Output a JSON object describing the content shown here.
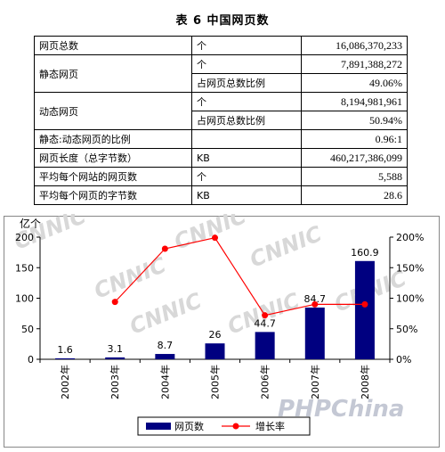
{
  "title": "表 6  中国网页数",
  "table": {
    "rows": [
      {
        "label": "网页总数",
        "unit": "个",
        "value": "16,086,370,233"
      },
      {
        "label": "静态网页",
        "subrows": [
          {
            "unit": "个",
            "value": "7,891,388,272"
          },
          {
            "unit": "占网页总数比例",
            "value": "49.06%"
          }
        ]
      },
      {
        "label": "动态网页",
        "subrows": [
          {
            "unit": "个",
            "value": "8,194,981,961"
          },
          {
            "unit": "占网页总数比例",
            "value": "50.94%"
          }
        ]
      },
      {
        "label": "静态:动态网页的比例",
        "unit": "",
        "value": "0.96:1"
      },
      {
        "label": "网页长度（总字节数）",
        "unit": "KB",
        "value": "460,217,386,099"
      },
      {
        "label": "平均每个网站的网页数",
        "unit": "个",
        "value": "5,588"
      },
      {
        "label": "平均每个网页的字节数",
        "unit": "KB",
        "value": "28.6"
      }
    ]
  },
  "watermarks": {
    "cnnic": "CNNIC",
    "phpchina": "PHPChina"
  },
  "chart_data": {
    "type": "bar",
    "categories": [
      "2002年",
      "2003年",
      "2004年",
      "2005年",
      "2006年",
      "2007年",
      "2008年"
    ],
    "ylabel_left": "亿个",
    "ylim_left": [
      0,
      200
    ],
    "yticks_left": [
      "0",
      "50",
      "100",
      "150",
      "200"
    ],
    "ylim_right": [
      0,
      200
    ],
    "yticks_right": [
      "0%",
      "50%",
      "100%",
      "150%",
      "200%"
    ],
    "grid": false,
    "legend_position": "bottom",
    "series": [
      {
        "name": "网页数",
        "type": "bar",
        "color": "#000080",
        "values": [
          1.6,
          3.1,
          8.7,
          26,
          44.7,
          84.7,
          160.9
        ],
        "labels": [
          "1.6",
          "3.1",
          "8.7",
          "26",
          "44.7",
          "84.7",
          "160.9"
        ]
      },
      {
        "name": "增长率",
        "type": "line",
        "axis": "right",
        "color": "#ff0000",
        "values": [
          null,
          94,
          181,
          199,
          72,
          90,
          90
        ]
      }
    ]
  }
}
